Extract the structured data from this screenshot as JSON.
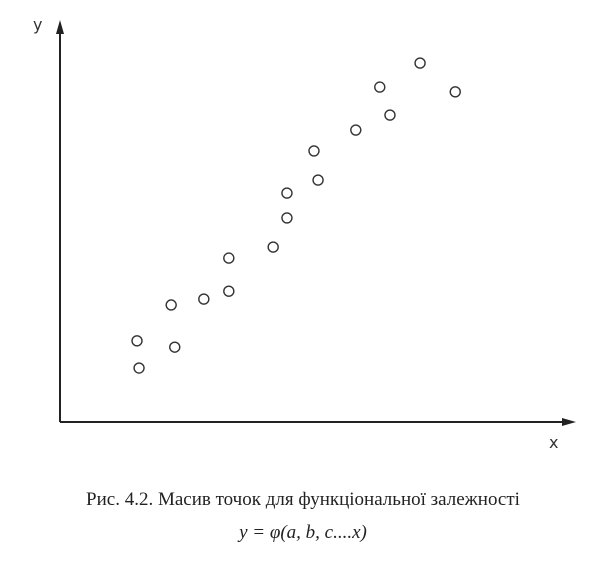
{
  "chart_data": {
    "type": "scatter",
    "ylabel": "y",
    "xlabel": "x",
    "caption": "Рис. 4.2. Масив точок для функціональної залежності",
    "formula": "y = φ(a, b, c....x)",
    "xlim": [
      0,
      100
    ],
    "ylim": [
      0,
      100
    ],
    "x": [
      15.1,
      15.5,
      21.8,
      22.5,
      28.2,
      33.1,
      33.1,
      41.8,
      44.5,
      44.5,
      49.8,
      50.6,
      58.0,
      62.7,
      64.7,
      70.6,
      77.5
    ],
    "values": [
      20.6,
      13.7,
      29.7,
      19.0,
      31.2,
      41.6,
      33.2,
      44.4,
      58.1,
      51.8,
      68.8,
      61.4,
      74.1,
      85.0,
      77.9,
      91.1,
      83.8
    ],
    "color": "#333333"
  }
}
